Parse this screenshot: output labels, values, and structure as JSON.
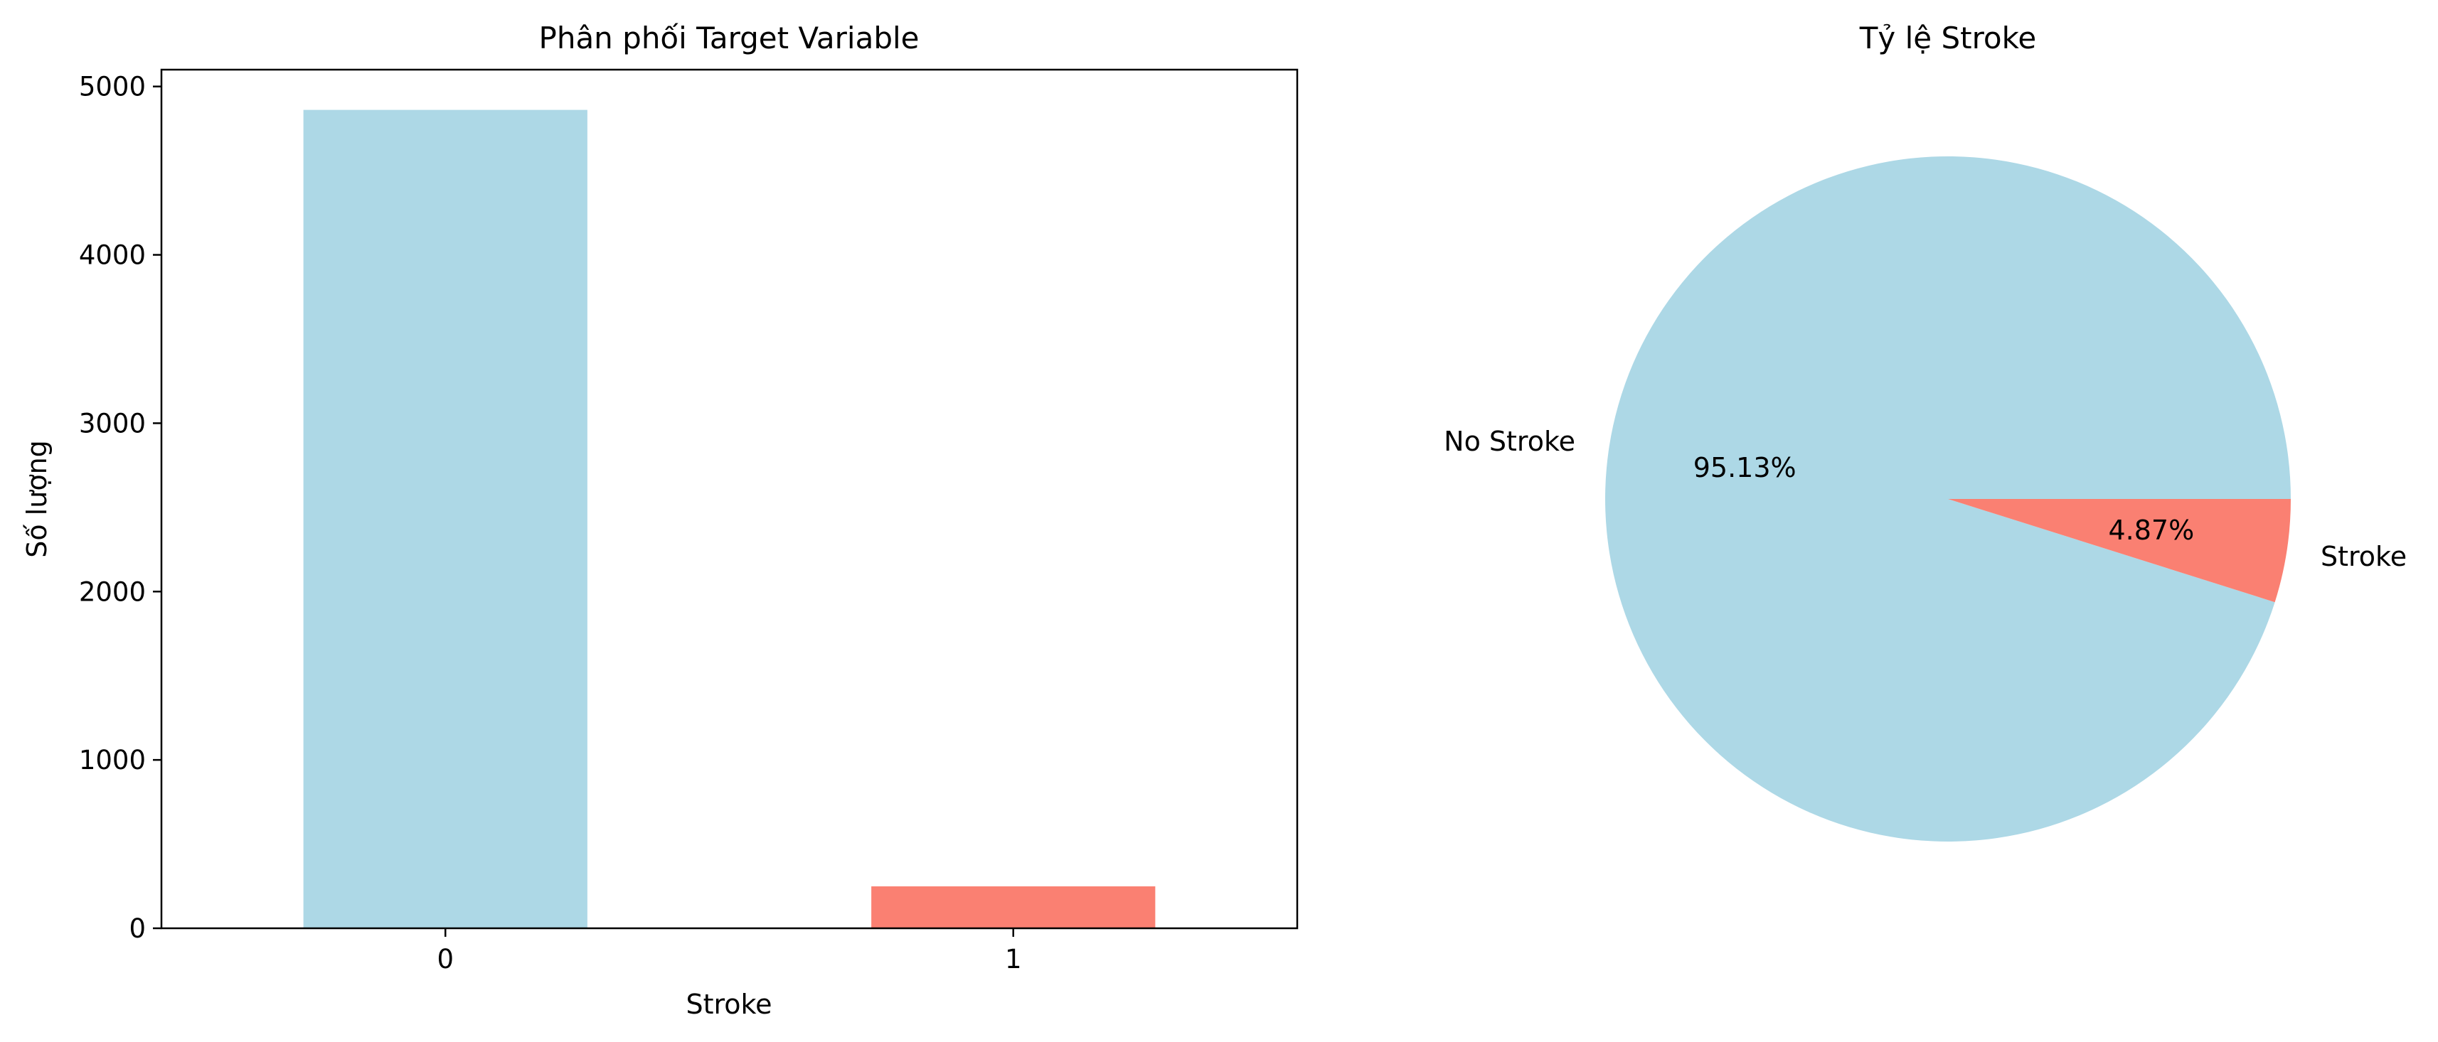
{
  "chart_data": [
    {
      "type": "bar",
      "title": "Phân phối Target Variable",
      "xlabel": "Stroke",
      "ylabel": "Số lượng",
      "categories": [
        "0",
        "1"
      ],
      "values": [
        4861,
        249
      ],
      "colors": [
        "#add8e6",
        "#fa8072"
      ],
      "ylim": [
        0,
        5100
      ],
      "yticks": [
        0,
        1000,
        2000,
        3000,
        4000,
        5000
      ],
      "grid": false
    },
    {
      "type": "pie",
      "title": "Tỷ lệ Stroke",
      "labels": [
        "No Stroke",
        "Stroke"
      ],
      "values": [
        95.13,
        4.87
      ],
      "value_labels": [
        "95.13%",
        "4.87%"
      ],
      "colors": [
        "#add8e6",
        "#fa8072"
      ],
      "start_angle": 0,
      "direction": "counterclockwise"
    }
  ]
}
